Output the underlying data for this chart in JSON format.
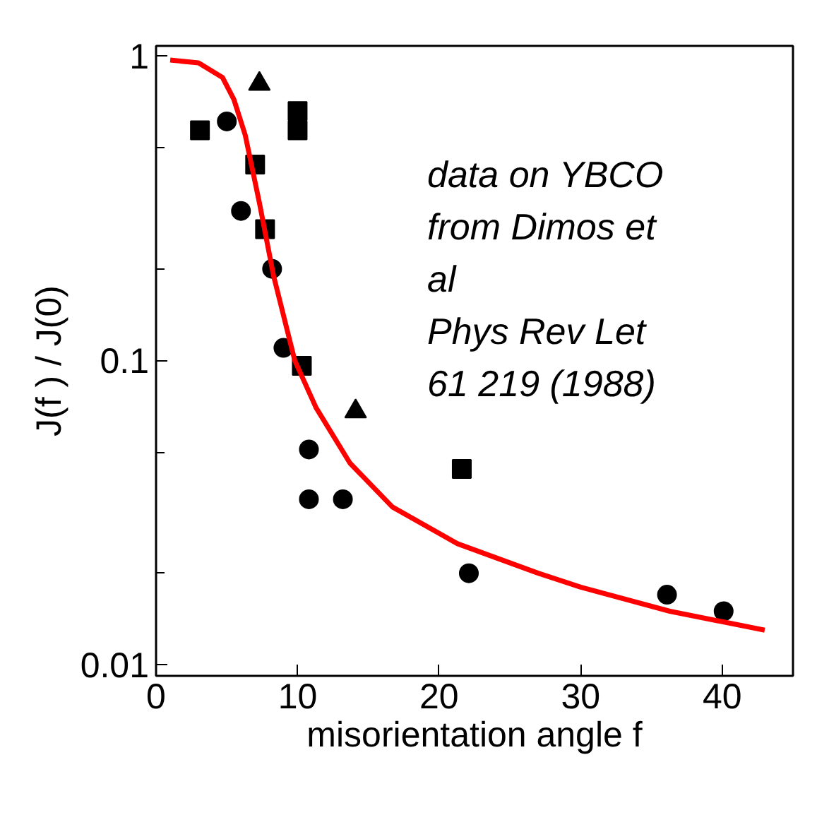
{
  "chart_data": {
    "type": "scatter",
    "xlabel": "misorientation angle f",
    "ylabel": "J(f ) / J(0)",
    "log": "y",
    "xlim": [
      0,
      45
    ],
    "ylim": [
      0.0092,
      1.08
    ],
    "xticks": [
      0,
      10,
      20,
      30,
      40
    ],
    "yticks": [
      0.01,
      {
        "value": 0.02,
        "label": null
      },
      {
        "value": 0.05,
        "label": null
      },
      0.1,
      {
        "value": 0.2,
        "label": null
      },
      {
        "value": 0.5,
        "label": null
      },
      1
    ],
    "grid": false,
    "series": [
      {
        "marker": "square",
        "color": "#000000",
        "x": [
          3.1,
          7.0,
          7.7,
          10.0,
          10.0,
          10.3,
          21.6
        ],
        "values": [
          0.57,
          0.44,
          0.27,
          0.66,
          0.57,
          0.096,
          0.044
        ]
      },
      {
        "marker": "circle",
        "color": "#000000",
        "x": [
          5.0,
          6.0,
          8.2,
          9.0,
          10.8,
          10.8,
          13.2,
          22.1,
          36.1,
          40.1
        ],
        "values": [
          0.61,
          0.31,
          0.2,
          0.11,
          0.051,
          0.035,
          0.035,
          0.02,
          0.017,
          0.015
        ]
      },
      {
        "marker": "triangle",
        "color": "#000000",
        "x": [
          7.3,
          14.1
        ],
        "values": [
          0.81,
          0.068
        ]
      },
      {
        "type": "line",
        "color": "#ff0000",
        "x": [
          1.0,
          3.0,
          4.7,
          5.5,
          6.3,
          7.3,
          8.3,
          9.8,
          11.3,
          13.7,
          16.7,
          21.3,
          27.0,
          30.0,
          36.3,
          43.0
        ],
        "values": [
          0.97,
          0.95,
          0.85,
          0.72,
          0.55,
          0.33,
          0.19,
          0.1,
          0.07,
          0.046,
          0.033,
          0.025,
          0.02,
          0.018,
          0.015,
          0.013
        ]
      }
    ],
    "annotations": [
      "data on YBCO",
      "from Dimos et",
      "al",
      "Phys Rev Let",
      "61 219 (1988)"
    ]
  }
}
